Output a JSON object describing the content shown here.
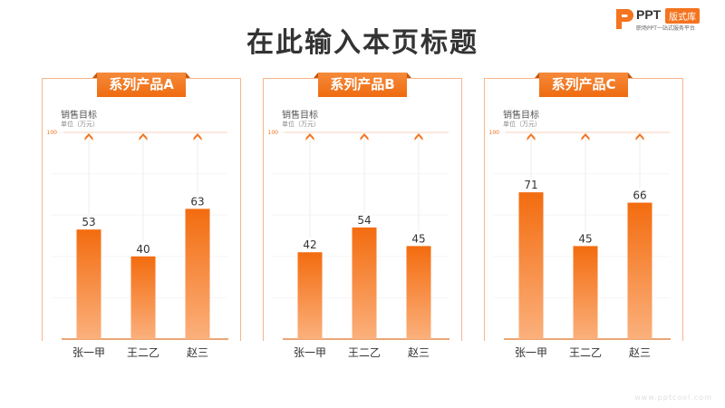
{
  "page": {
    "title": "在此输入本页标题",
    "watermark": "www.pptcool.com"
  },
  "logo": {
    "name": "PPT",
    "tag": "版式库",
    "subtitle": "职场PPT一站式服务平台"
  },
  "colors": {
    "accent": "#f4741f",
    "bar_top": "#f36c0f",
    "bar_bottom": "#fbb07c",
    "title": "#333333"
  },
  "chart_data": [
    {
      "type": "bar",
      "title": "系列产品A",
      "ylabel": "销售目标",
      "yunit": "单位（万元）",
      "ymax_label": "100",
      "ylim": [
        0,
        100
      ],
      "categories": [
        "张一甲",
        "王二乙",
        "赵三"
      ],
      "values": [
        53,
        40,
        63
      ]
    },
    {
      "type": "bar",
      "title": "系列产品B",
      "ylabel": "销售目标",
      "yunit": "单位（万元）",
      "ymax_label": "100",
      "ylim": [
        0,
        100
      ],
      "categories": [
        "张一甲",
        "王二乙",
        "赵三"
      ],
      "values": [
        42,
        54,
        45
      ]
    },
    {
      "type": "bar",
      "title": "系列产品C",
      "ylabel": "销售目标",
      "yunit": "单位（万元）",
      "ymax_label": "100",
      "ylim": [
        0,
        100
      ],
      "categories": [
        "张一甲",
        "王二乙",
        "赵三"
      ],
      "values": [
        71,
        45,
        66
      ]
    }
  ]
}
